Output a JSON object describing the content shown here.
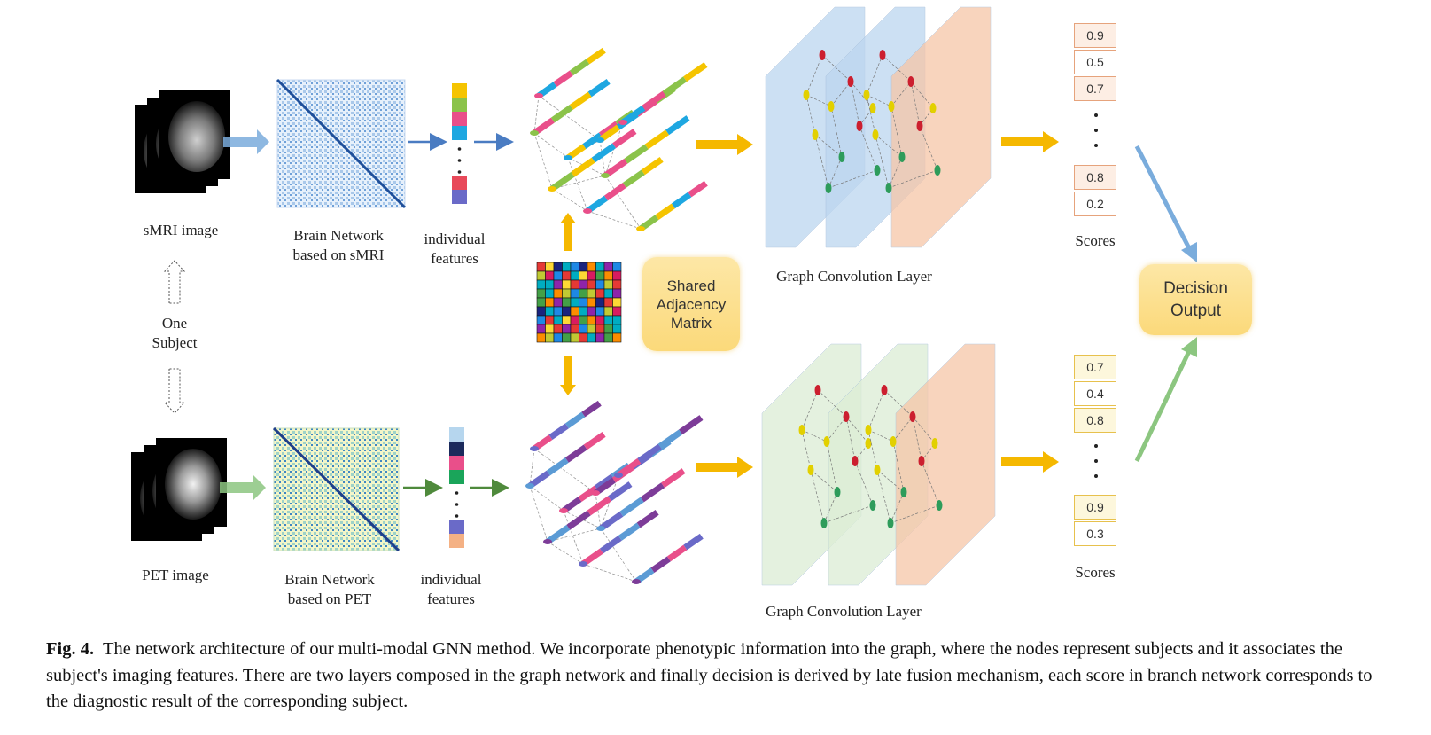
{
  "labels": {
    "smri_image": "sMRI image",
    "pet_image": "PET image",
    "one_subject_line1": "One",
    "one_subject_line2": "Subject",
    "brain_net_smri_line1": "Brain Network",
    "brain_net_smri_line2": "based on sMRI",
    "brain_net_pet_line1": "Brain Network",
    "brain_net_pet_line2": "based on PET",
    "ind_feat_top_line1": "individual",
    "ind_feat_top_line2": "features",
    "ind_feat_bottom_line1": "individual",
    "ind_feat_bottom_line2": "features",
    "shared_adj_line1": "Shared",
    "shared_adj_line2": "Adjacency",
    "shared_adj_line3": "Matrix",
    "gcl_top": "Graph Convolution Layer",
    "gcl_bottom": "Graph Convolution Layer",
    "scores_top": "Scores",
    "scores_bottom": "Scores",
    "decision_line1": "Decision",
    "decision_line2": "Output"
  },
  "scores_top": [
    "0.9",
    "0.5",
    "0.7",
    "0.8",
    "0.2"
  ],
  "scores_bottom": [
    "0.7",
    "0.4",
    "0.8",
    "0.9",
    "0.3"
  ],
  "caption": {
    "prefix": "Fig. 4.",
    "text": "The network architecture of our multi-modal GNN method. We incorporate phenotypic information into the graph, where the nodes represent subjects and it associates the subject's imaging features. There are two layers composed in the graph network and finally decision is derived by late fusion mechanism, each score in branch network corresponds to the diagnostic result of the corresponding subject."
  },
  "colors": {
    "smri_feature": [
      "#f5c400",
      "#8bc34a",
      "#e94f8a",
      "#1ea7e1",
      "#e8495a",
      "#6a6ac8"
    ],
    "pet_feature": [
      "#b6d6ee",
      "#1b2a5c",
      "#e94f8a",
      "#1aa55a",
      "#6a6ac8",
      "#f4b184"
    ],
    "arrow_yellow": "#f5b800",
    "arrow_blue": "#7aacdc",
    "arrow_green": "#8cc680",
    "score_border_top": "#e6a37c",
    "score_border_bottom": "#e7c14d",
    "gcl_blue": "#bcd6ef",
    "gcl_green": "#dcedd5",
    "gcl_orange": "#f6c6a8"
  }
}
